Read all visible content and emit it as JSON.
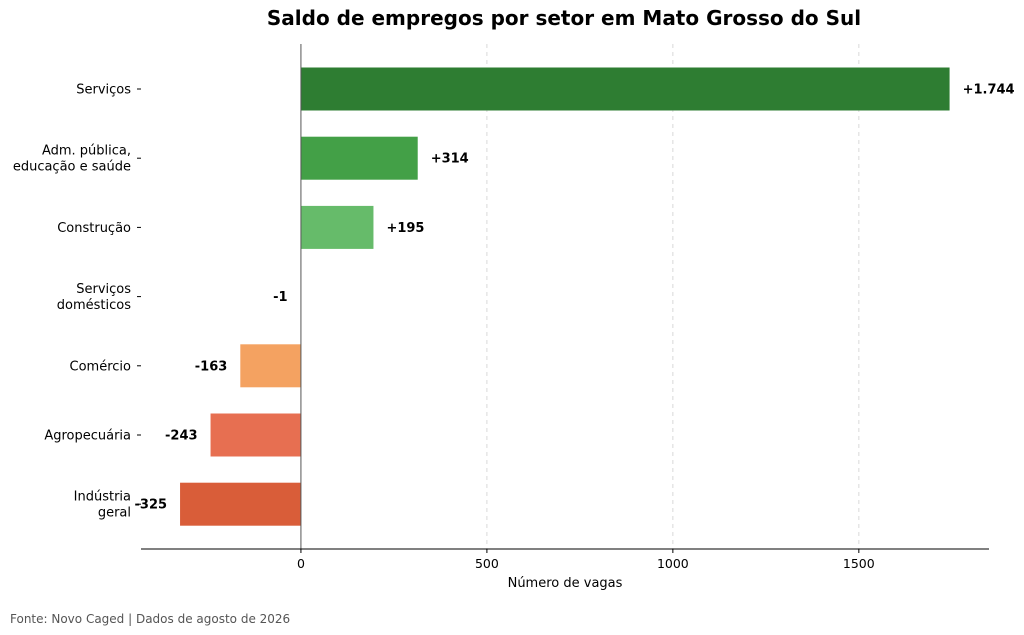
{
  "chart_data": {
    "type": "bar",
    "orientation": "horizontal",
    "title": "Saldo de empregos por setor em Mato Grosso do Sul",
    "xlabel": "Número de vagas",
    "ylabel": "",
    "xlim": [
      -430,
      1850
    ],
    "xticks": [
      0,
      500,
      1000,
      1500
    ],
    "grid": "vertical dashed",
    "categories": [
      [
        "Serviços"
      ],
      [
        "Adm. pública,",
        "educação e saúde"
      ],
      [
        "Construção"
      ],
      [
        "Serviços",
        "domésticos"
      ],
      [
        "Comércio"
      ],
      [
        "Agropecuária"
      ],
      [
        "Indústria",
        "geral"
      ]
    ],
    "values": [
      1744,
      314,
      195,
      -1,
      -163,
      -243,
      -325
    ],
    "value_labels": [
      "+1.744",
      "+314",
      "+195",
      "-1",
      "-163",
      "-243",
      "-325"
    ],
    "colors": [
      "#2e7d32",
      "#43a047",
      "#66bb6a",
      "#fbc99c",
      "#f4a261",
      "#e76f51",
      "#d95d39"
    ]
  },
  "footer": "Fonte: Novo Caged | Dados de agosto de 2026"
}
